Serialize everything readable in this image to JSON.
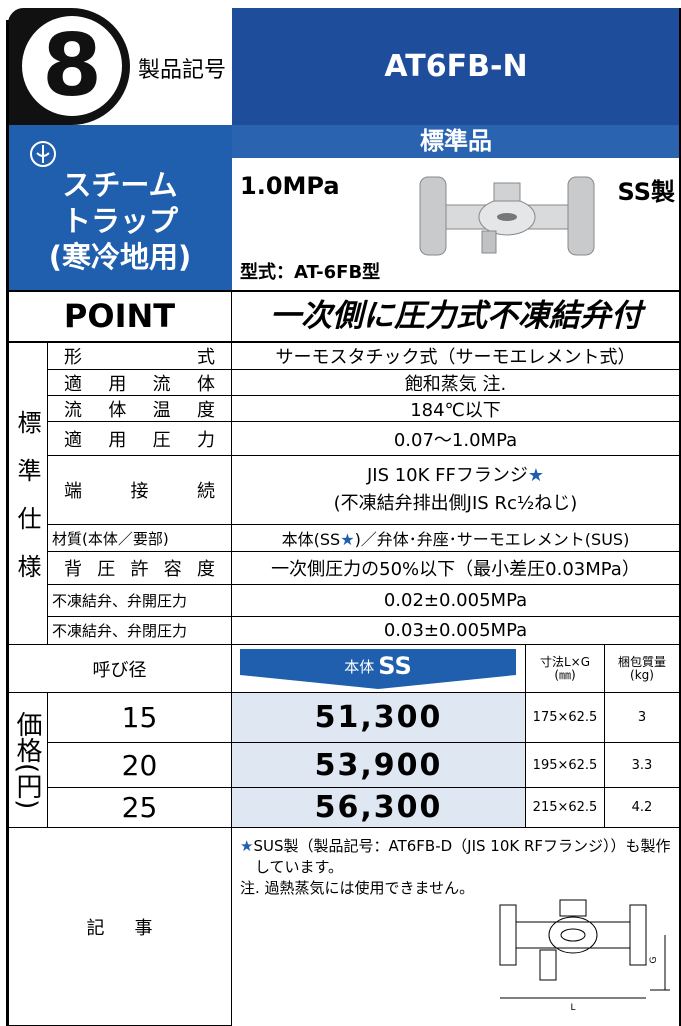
{
  "header": {
    "number": "8",
    "code_label": "製品記号",
    "model": "AT6FB-N"
  },
  "category": {
    "lines": [
      "スチーム",
      "トラップ",
      "(寒冷地用)"
    ]
  },
  "product": {
    "badge": "標準品",
    "pressure": "1.0MPa",
    "material": "SS製",
    "type": "型式：AT-6FB型"
  },
  "point": {
    "label": "POINT",
    "text": "一次側に圧力式不凍結弁付"
  },
  "spec": {
    "side_label": "標準仕様",
    "rows": [
      [
        "形式",
        "サーモスタチック式（サーモエレメント式）"
      ],
      [
        "適用流体",
        "飽和蒸気 注."
      ],
      [
        "流体温度",
        "184℃以下"
      ],
      [
        "適用圧力",
        "0.07〜1.0MPa"
      ],
      [
        "端接続",
        [
          "JIS 10K FFフランジ★",
          "(不凍結弁排出側JIS Rc½ねじ)"
        ]
      ],
      [
        "材質(本体／要部)",
        "本体(SS★)／弁体･弁座･サーモエレメント(SUS)"
      ],
      [
        "背圧許容度",
        "一次側圧力の50%以下（最小差圧0.03MPa）"
      ],
      [
        "不凍結弁、弁開圧力",
        "0.02±0.005MPa"
      ],
      [
        "不凍結弁、弁閉圧力",
        "0.03±0.005MPa"
      ]
    ]
  },
  "price": {
    "side_label": "価格(円)",
    "header": {
      "size": "呼び径",
      "body": "本体",
      "material": "SS",
      "dimension": "寸法L×G",
      "dimension_unit": "(㎜)",
      "weight": "梱包質量",
      "weight_unit": "(kg)"
    },
    "rows": [
      [
        "15",
        "51,300",
        "175×62.5",
        "3"
      ],
      [
        "20",
        "53,900",
        "195×62.5",
        "3.3"
      ],
      [
        "25",
        "56,300",
        "215×62.5",
        "4.2"
      ]
    ]
  },
  "notes": {
    "label": "記事",
    "lines": [
      "★SUS製（製品記号：AT6FB-D（JIS 10K RFフランジ））も製作しています。",
      "注. 過熱蒸気には使用できません。"
    ],
    "drawing": {
      "g": "G",
      "l": "L"
    }
  }
}
